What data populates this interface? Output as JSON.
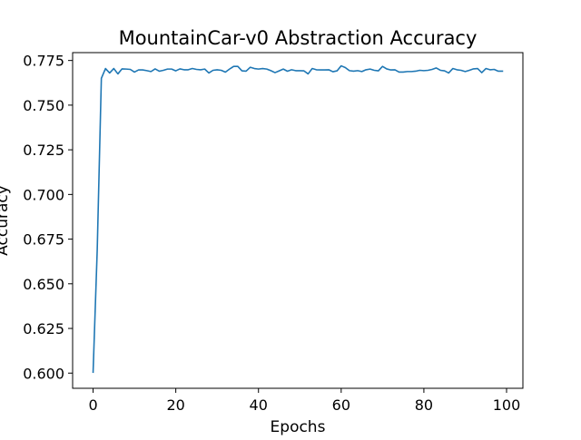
{
  "chart_data": {
    "type": "line",
    "title": "MountainCar-v0 Abstraction Accuracy",
    "xlabel": "Epochs",
    "ylabel": "Accuracy",
    "xlim": [
      -4.95,
      103.95
    ],
    "ylim": [
      0.5915,
      0.7794
    ],
    "xticks": [
      0,
      20,
      40,
      60,
      80,
      100
    ],
    "xtick_labels": [
      "0",
      "20",
      "40",
      "60",
      "80",
      "100"
    ],
    "yticks": [
      0.6,
      0.625,
      0.65,
      0.675,
      0.7,
      0.725,
      0.75,
      0.775
    ],
    "ytick_labels": [
      "0.600",
      "0.625",
      "0.650",
      "0.675",
      "0.700",
      "0.725",
      "0.750",
      "0.775"
    ],
    "grid": false,
    "legend": "none",
    "line_color": "#1f77b4",
    "series": [
      {
        "x": [
          0,
          1,
          2,
          3,
          4,
          5,
          6,
          7,
          8,
          9,
          10,
          11,
          12,
          13,
          14,
          15,
          16,
          17,
          18,
          19,
          20,
          21,
          22,
          23,
          24,
          25,
          26,
          27,
          28,
          29,
          30,
          31,
          32,
          33,
          34,
          35,
          36,
          37,
          38,
          39,
          40,
          41,
          42,
          43,
          44,
          45,
          46,
          47,
          48,
          49,
          50,
          51,
          52,
          53,
          54,
          55,
          56,
          57,
          58,
          59,
          60,
          61,
          62,
          63,
          64,
          65,
          66,
          67,
          68,
          69,
          70,
          71,
          72,
          73,
          74,
          75,
          76,
          77,
          78,
          79,
          80,
          81,
          82,
          83,
          84,
          85,
          86,
          87,
          88,
          89,
          90,
          91,
          92,
          93,
          94,
          95,
          96,
          97,
          98,
          99
        ],
        "values": [
          0.6005,
          0.669,
          0.765,
          0.7705,
          0.768,
          0.7705,
          0.7675,
          0.7703,
          0.7702,
          0.77,
          0.7685,
          0.7697,
          0.7697,
          0.7693,
          0.7688,
          0.7703,
          0.769,
          0.7695,
          0.7702,
          0.7702,
          0.7692,
          0.7703,
          0.7698,
          0.7698,
          0.7705,
          0.77,
          0.7698,
          0.7702,
          0.768,
          0.7695,
          0.7698,
          0.7695,
          0.7685,
          0.7702,
          0.7717,
          0.7717,
          0.7692,
          0.769,
          0.7712,
          0.7705,
          0.7702,
          0.7705,
          0.7702,
          0.7693,
          0.7682,
          0.7692,
          0.7702,
          0.769,
          0.7698,
          0.7693,
          0.7693,
          0.7692,
          0.7675,
          0.7705,
          0.7698,
          0.7697,
          0.7697,
          0.7698,
          0.7687,
          0.7692,
          0.772,
          0.771,
          0.7693,
          0.769,
          0.7693,
          0.7688,
          0.7698,
          0.7702,
          0.7695,
          0.7692,
          0.7717,
          0.7703,
          0.7697,
          0.7698,
          0.7685,
          0.7685,
          0.7688,
          0.7688,
          0.769,
          0.7695,
          0.7693,
          0.7695,
          0.77,
          0.7708,
          0.7695,
          0.7692,
          0.768,
          0.7705,
          0.7698,
          0.7695,
          0.7688,
          0.7695,
          0.7703,
          0.7705,
          0.7682,
          0.7705,
          0.7698,
          0.77,
          0.769,
          0.769
        ]
      }
    ]
  }
}
